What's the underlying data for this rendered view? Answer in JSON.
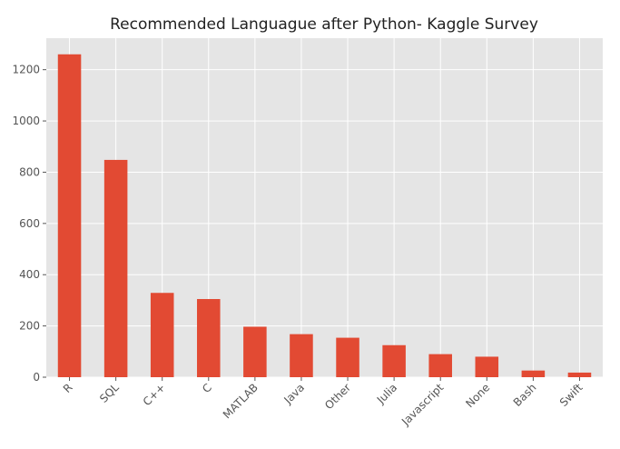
{
  "chart_data": {
    "type": "bar",
    "title": "Recommended Languague after Python- Kaggle Survey",
    "xlabel": "",
    "ylabel": "",
    "categories": [
      "R",
      "SQL",
      "C++",
      "C",
      "MATLAB",
      "Java",
      "Other",
      "Julia",
      "Javascript",
      "None",
      "Bash",
      "Swift"
    ],
    "values": [
      1260,
      848,
      329,
      305,
      197,
      168,
      154,
      125,
      90,
      80,
      26,
      18
    ],
    "ylim": [
      0,
      1323
    ],
    "yticks": [
      0,
      200,
      400,
      600,
      800,
      1000,
      1200
    ],
    "grid": true,
    "style": "ggplot",
    "colors": {
      "bar": "#E24A33",
      "background": "#E5E5E5",
      "grid": "#FFFFFF"
    }
  }
}
